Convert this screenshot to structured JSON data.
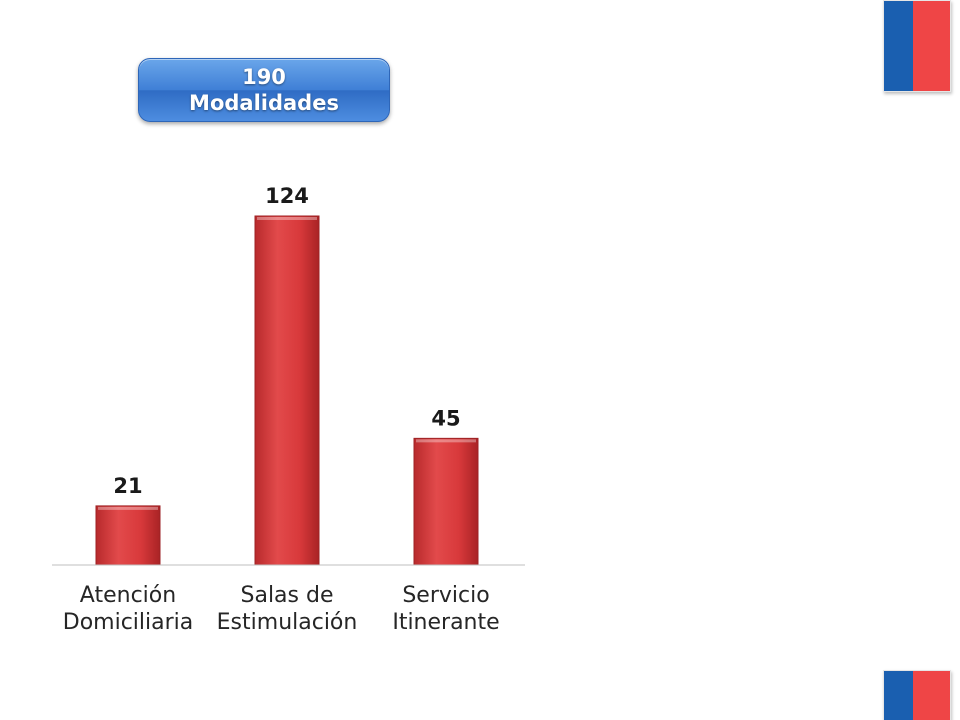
{
  "badge": {
    "line1": "190",
    "line2": "Modalidades"
  },
  "colors": {
    "bar": "#d9383a",
    "flag_blue": "#1a5fb0",
    "flag_red": "#ef4546",
    "badge": "#3f7fd6"
  },
  "chart_data": {
    "type": "bar",
    "categories": [
      "Atención\nDomiciliaria",
      "Salas de\nEstimulación",
      "Servicio\nItinerante"
    ],
    "values": [
      21,
      124,
      45
    ],
    "data_labels": [
      "21",
      "124",
      "45"
    ],
    "title": "",
    "xlabel": "",
    "ylabel": "",
    "ylim": [
      0,
      124
    ],
    "grid": false,
    "legend": "none"
  }
}
